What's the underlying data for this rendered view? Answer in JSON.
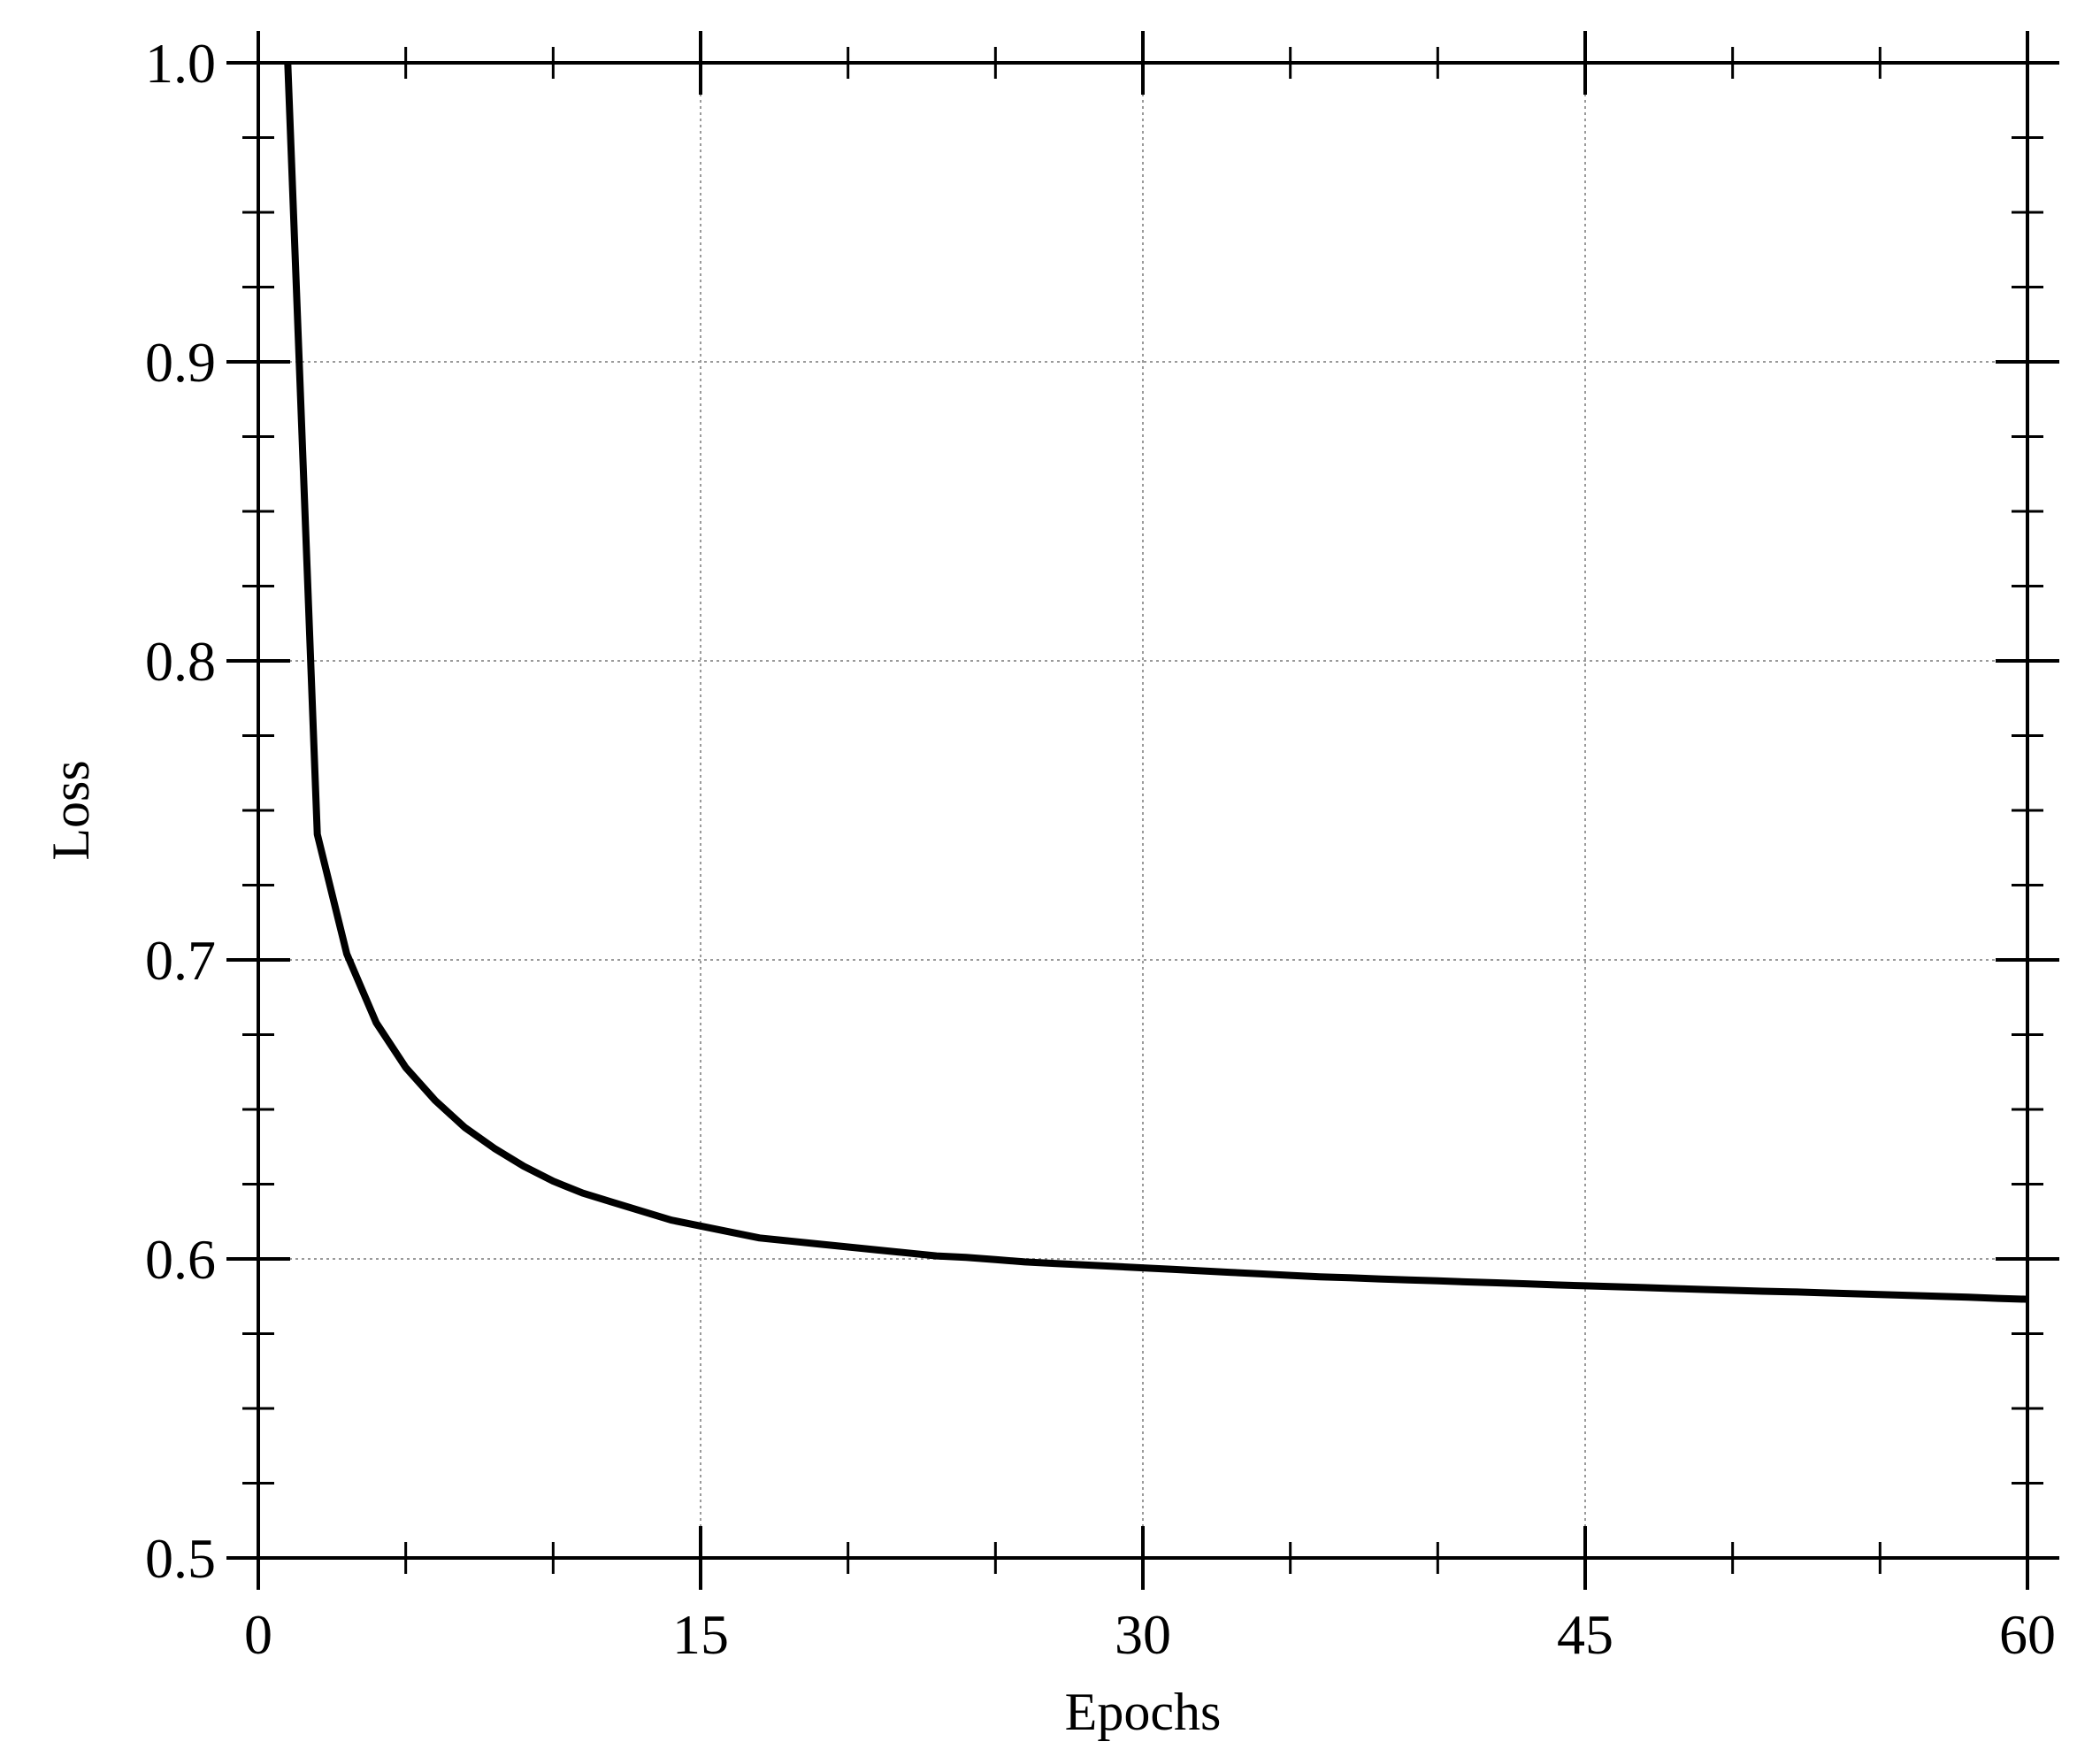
{
  "chart_data": {
    "type": "line",
    "title": "",
    "xlabel": "Epochs",
    "ylabel": "Loss",
    "xlim": [
      0,
      60
    ],
    "ylim": [
      0.5,
      1.0
    ],
    "x_ticks": [
      0,
      15,
      30,
      45,
      60
    ],
    "x_tick_labels": [
      "0",
      "15",
      "30",
      "45",
      "60"
    ],
    "y_ticks": [
      0.5,
      0.6,
      0.7,
      0.8,
      0.9,
      1.0
    ],
    "y_tick_labels": [
      "0.5",
      "0.6",
      "0.7",
      "0.8",
      "0.9",
      "1.0"
    ],
    "x_minor_step": 5,
    "y_minor_step": 0.025,
    "grid": true,
    "legend": "none",
    "line_color": "#000000",
    "grid_color": "#9a9a9a",
    "series": [
      {
        "x": [
          1,
          2,
          3,
          4,
          5,
          6,
          7,
          8,
          9,
          10,
          11,
          12,
          13,
          14,
          15,
          16,
          17,
          18,
          19,
          20,
          21,
          22,
          23,
          24,
          25,
          26,
          27,
          28,
          29,
          30,
          31,
          32,
          33,
          34,
          35,
          36,
          37,
          38,
          39,
          40,
          41,
          42,
          43,
          44,
          45,
          46,
          47,
          48,
          49,
          50,
          51,
          52,
          53,
          54,
          55,
          56,
          57,
          58,
          59,
          60
        ],
        "values": [
          1.0,
          0.742,
          0.702,
          0.679,
          0.664,
          0.653,
          0.644,
          0.637,
          0.631,
          0.626,
          0.622,
          0.619,
          0.616,
          0.613,
          0.611,
          0.609,
          0.607,
          0.606,
          0.605,
          0.604,
          0.603,
          0.602,
          0.601,
          0.6005,
          0.5998,
          0.599,
          0.5985,
          0.598,
          0.5975,
          0.597,
          0.5965,
          0.596,
          0.5955,
          0.595,
          0.5945,
          0.594,
          0.5937,
          0.5933,
          0.593,
          0.5927,
          0.5923,
          0.592,
          0.5917,
          0.5913,
          0.591,
          0.5907,
          0.5904,
          0.5901,
          0.5898,
          0.5895,
          0.5892,
          0.589,
          0.5887,
          0.5884,
          0.5881,
          0.5878,
          0.5875,
          0.5872,
          0.5868,
          0.5865
        ]
      }
    ]
  }
}
